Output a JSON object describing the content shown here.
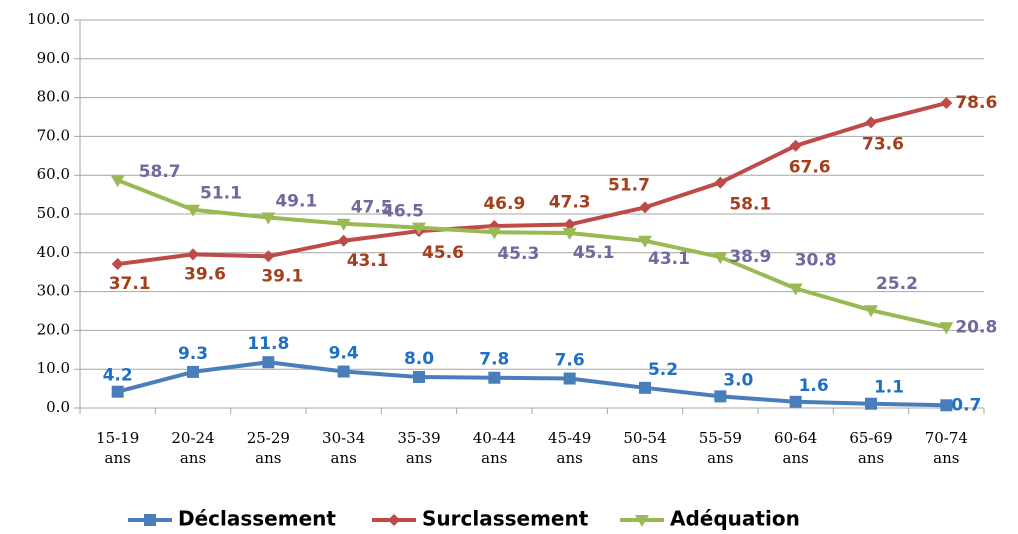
{
  "chart_data": {
    "type": "line",
    "categories": [
      "15-19 ans",
      "20-24 ans",
      "25-29 ans",
      "30-34 ans",
      "35-39 ans",
      "40-44 ans",
      "45-49 ans",
      "50-54 ans",
      "55-59 ans",
      "60-64 ans",
      "65-69 ans",
      "70-74 ans"
    ],
    "series": [
      {
        "name": "Déclassement",
        "color": "#4a7ebb",
        "label_color": "#1f6fc5",
        "marker": "square",
        "values": [
          4.2,
          9.3,
          11.8,
          9.4,
          8.0,
          7.8,
          7.6,
          5.2,
          3.0,
          1.6,
          1.1,
          0.7
        ],
        "value_labels": [
          "4.2",
          "9.3",
          "11.8",
          "9.4",
          "8.0",
          "7.8",
          "7.6",
          "5.2",
          "3.0",
          "1.6",
          "1.1",
          "0.7"
        ]
      },
      {
        "name": "Surclassement",
        "color": "#be4b48",
        "label_color": "#a33f1c",
        "marker": "diamond",
        "values": [
          37.1,
          39.6,
          39.1,
          43.1,
          45.6,
          46.9,
          47.3,
          51.7,
          58.1,
          67.6,
          73.6,
          78.6
        ],
        "value_labels": [
          "37.1",
          "39.6",
          "39.1",
          "43.1",
          "45.6",
          "46.9",
          "47.3",
          "51.7",
          "58.1",
          "67.6",
          "73.6",
          "78.6"
        ]
      },
      {
        "name": "Adéquation",
        "color": "#98b954",
        "label_color": "#6f6a9e",
        "marker": "triangle",
        "values": [
          58.7,
          51.1,
          49.1,
          47.5,
          46.5,
          45.3,
          45.1,
          43.1,
          38.9,
          30.8,
          25.2,
          20.8
        ],
        "value_labels": [
          "58.7",
          "51.1",
          "49.1",
          "47.5",
          "46.5",
          "45.3",
          "45.1",
          "43.1",
          "38.9",
          "30.8",
          "25.2",
          "20.8"
        ]
      }
    ],
    "ylim": [
      0,
      100
    ],
    "yticks": [
      {
        "value": 0,
        "label": "0.0"
      },
      {
        "value": 10,
        "label": "10.0"
      },
      {
        "value": 20,
        "label": "20.0"
      },
      {
        "value": 30,
        "label": "30.0"
      },
      {
        "value": 40,
        "label": "40.0"
      },
      {
        "value": 50,
        "label": "50.0"
      },
      {
        "value": 60,
        "label": "60.0"
      },
      {
        "value": 70,
        "label": "70.0"
      },
      {
        "value": 80,
        "label": "80.0"
      },
      {
        "value": 90,
        "label": "90.0"
      },
      {
        "value": 100,
        "label": "100.0"
      }
    ],
    "grid": true,
    "legend": "bottom"
  }
}
